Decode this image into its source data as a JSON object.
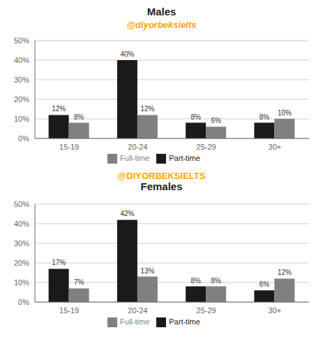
{
  "chart_data": [
    {
      "type": "bar",
      "title": "Males",
      "categories": [
        "15-19",
        "20-24",
        "25-29",
        "30+"
      ],
      "series": [
        {
          "name": "Part-time",
          "color": "#1a1a1a",
          "values": [
            12,
            40,
            8,
            8
          ],
          "value_labels": [
            "12%",
            "40%",
            "8%",
            "8%"
          ]
        },
        {
          "name": "Full-time",
          "color": "#808080",
          "values": [
            8,
            12,
            6,
            10
          ],
          "value_labels": [
            "8%",
            "12%",
            "6%",
            "10%"
          ]
        }
      ],
      "ylim": [
        0,
        50
      ],
      "yticks": [
        {
          "value": 0,
          "label": "0%"
        },
        {
          "value": 10,
          "label": "10%"
        },
        {
          "value": 20,
          "label": "20%"
        },
        {
          "value": 30,
          "label": "30%"
        },
        {
          "value": 40,
          "label": "40%"
        },
        {
          "value": 50,
          "label": "50%"
        }
      ],
      "grid": true,
      "legend": "bottom",
      "data_labels": true,
      "annotations": [
        {
          "text": "@diyorbeksielts",
          "color": "#FFA500"
        }
      ]
    },
    {
      "type": "bar",
      "title": "Females",
      "categories": [
        "15-19",
        "20-24",
        "25-29",
        "30+"
      ],
      "series": [
        {
          "name": "Part-time",
          "color": "#1a1a1a",
          "values": [
            17,
            42,
            8,
            6
          ],
          "value_labels": [
            "17%",
            "42%",
            "8%",
            "6%"
          ]
        },
        {
          "name": "Full-time",
          "color": "#808080",
          "values": [
            7,
            13,
            8,
            12
          ],
          "value_labels": [
            "7%",
            "13%",
            "8%",
            "12%"
          ]
        }
      ],
      "ylim": [
        0,
        50
      ],
      "yticks": [
        {
          "value": 0,
          "label": "0%"
        },
        {
          "value": 10,
          "label": "10%"
        },
        {
          "value": 20,
          "label": "20%"
        },
        {
          "value": 30,
          "label": "30%"
        },
        {
          "value": 40,
          "label": "40%"
        },
        {
          "value": 50,
          "label": "50%"
        }
      ],
      "grid": true,
      "legend": "bottom",
      "data_labels": true,
      "annotations": [
        {
          "text": "@DIYORBEKSIELTS",
          "color": "#FFA500"
        }
      ]
    }
  ]
}
